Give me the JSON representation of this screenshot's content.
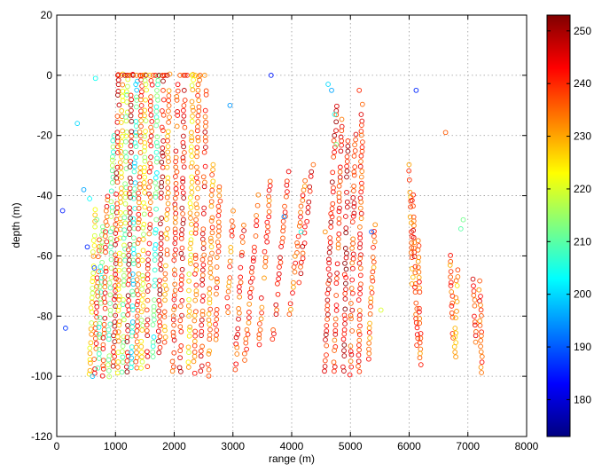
{
  "chart_data": {
    "type": "scatter",
    "title": "",
    "xlabel": "range (m)",
    "ylabel": "depth (m)",
    "xlim": [
      0,
      8000
    ],
    "ylim": [
      -120,
      20
    ],
    "xticks": [
      0,
      1000,
      2000,
      3000,
      4000,
      5000,
      6000,
      7000,
      8000
    ],
    "yticks": [
      20,
      0,
      -20,
      -40,
      -60,
      -80,
      -100,
      -120
    ],
    "grid": true,
    "marker": "open-circle",
    "colormap": "jet",
    "colorbar": {
      "range": [
        173,
        253
      ],
      "ticks": [
        180,
        190,
        200,
        210,
        220,
        230,
        240,
        250
      ],
      "position": "right"
    },
    "tracks": [
      {
        "x0": 650,
        "x1": 560,
        "ytop": -45,
        "ybot": -100,
        "c": 225
      },
      {
        "x0": 720,
        "x1": 640,
        "ytop": -55,
        "ybot": -100,
        "c": 238
      },
      {
        "x0": 780,
        "x1": 700,
        "ytop": -50,
        "ybot": -100,
        "c": 210
      },
      {
        "x0": 860,
        "x1": 780,
        "ytop": -40,
        "ybot": -100,
        "c": 240
      },
      {
        "x0": 960,
        "x1": 880,
        "ytop": -20,
        "ybot": -100,
        "c": 212
      },
      {
        "x0": 1060,
        "x1": 970,
        "ytop": 0,
        "ybot": -100,
        "c": 244
      },
      {
        "x0": 1120,
        "x1": 1040,
        "ytop": 0,
        "ybot": -100,
        "c": 228
      },
      {
        "x0": 1200,
        "x1": 1120,
        "ytop": 0,
        "ybot": -100,
        "c": 215
      },
      {
        "x0": 1280,
        "x1": 1200,
        "ytop": 0,
        "ybot": -100,
        "c": 246
      },
      {
        "x0": 1360,
        "x1": 1270,
        "ytop": 0,
        "ybot": -100,
        "c": 205
      },
      {
        "x0": 1440,
        "x1": 1350,
        "ytop": 0,
        "ybot": -100,
        "c": 237
      },
      {
        "x0": 1520,
        "x1": 1440,
        "ytop": 0,
        "ybot": -100,
        "c": 222
      },
      {
        "x0": 1620,
        "x1": 1530,
        "ytop": 0,
        "ybot": -100,
        "c": 240
      },
      {
        "x0": 1720,
        "x1": 1640,
        "ytop": 0,
        "ybot": -95,
        "c": 208
      },
      {
        "x0": 1820,
        "x1": 1740,
        "ytop": 0,
        "ybot": -95,
        "c": 245
      },
      {
        "x0": 1920,
        "x1": 1840,
        "ytop": 0,
        "ybot": -90,
        "c": 232
      },
      {
        "x0": 2060,
        "x1": 1980,
        "ytop": 0,
        "ybot": -100,
        "c": 239
      },
      {
        "x0": 2180,
        "x1": 2100,
        "ytop": 0,
        "ybot": -100,
        "c": 243
      },
      {
        "x0": 2320,
        "x1": 2240,
        "ytop": 0,
        "ybot": -100,
        "c": 226
      },
      {
        "x0": 2420,
        "x1": 2340,
        "ytop": 0,
        "ybot": -100,
        "c": 236
      },
      {
        "x0": 2540,
        "x1": 2460,
        "ytop": -5,
        "ybot": -100,
        "c": 241
      },
      {
        "x0": 2660,
        "x1": 2580,
        "ytop": -30,
        "ybot": -100,
        "c": 234
      },
      {
        "x0": 2780,
        "x1": 2700,
        "ytop": -35,
        "ybot": -90,
        "c": 238
      },
      {
        "x0": 3000,
        "x1": 2900,
        "ytop": -45,
        "ybot": -80,
        "c": 236
      },
      {
        "x0": 3180,
        "x1": 3040,
        "ytop": -50,
        "ybot": -98,
        "c": 240
      },
      {
        "x0": 3440,
        "x1": 3200,
        "ytop": -40,
        "ybot": -95,
        "c": 239
      },
      {
        "x0": 3640,
        "x1": 3440,
        "ytop": -35,
        "ybot": -90,
        "c": 238
      },
      {
        "x0": 3960,
        "x1": 3680,
        "ytop": -30,
        "ybot": -88,
        "c": 241
      },
      {
        "x0": 4220,
        "x1": 3960,
        "ytop": -35,
        "ybot": -80,
        "c": 237
      },
      {
        "x0": 4360,
        "x1": 4120,
        "ytop": -30,
        "ybot": -70,
        "c": 242
      },
      {
        "x0": 4760,
        "x1": 4560,
        "ytop": -10,
        "ybot": -100,
        "c": 244
      },
      {
        "x0": 4860,
        "x1": 4720,
        "ytop": -15,
        "ybot": -100,
        "c": 240
      },
      {
        "x0": 4960,
        "x1": 4880,
        "ytop": -20,
        "ybot": -100,
        "c": 246
      },
      {
        "x0": 5080,
        "x1": 5000,
        "ytop": -20,
        "ybot": -100,
        "c": 240
      },
      {
        "x0": 5200,
        "x1": 5140,
        "ytop": -10,
        "ybot": -100,
        "c": 239
      },
      {
        "x0": 5420,
        "x1": 5300,
        "ytop": -50,
        "ybot": -95,
        "c": 235
      },
      {
        "x0": 6000,
        "x1": 6060,
        "ytop": -30,
        "ybot": -70,
        "c": 234
      },
      {
        "x0": 6060,
        "x1": 6140,
        "ytop": -40,
        "ybot": -90,
        "c": 240
      },
      {
        "x0": 6160,
        "x1": 6200,
        "ytop": -55,
        "ybot": -100,
        "c": 237
      },
      {
        "x0": 6700,
        "x1": 6760,
        "ytop": -60,
        "ybot": -90,
        "c": 236
      },
      {
        "x0": 6820,
        "x1": 6780,
        "ytop": -65,
        "ybot": -95,
        "c": 232
      },
      {
        "x0": 7100,
        "x1": 7140,
        "ytop": -68,
        "ybot": -90,
        "c": 240
      },
      {
        "x0": 7200,
        "x1": 7240,
        "ytop": -68,
        "ybot": -100,
        "c": 238
      }
    ],
    "surface_points": {
      "x": [
        1040,
        1100,
        1160,
        1200,
        1240,
        1300,
        1360,
        1420,
        1460,
        1520,
        1580,
        1640,
        1680,
        1740,
        1800,
        1840,
        1880,
        2100,
        2160,
        2220,
        2300,
        2360,
        2440,
        2520
      ],
      "y": [
        0,
        0,
        0,
        0,
        0,
        0,
        0,
        0,
        0,
        0,
        0,
        0,
        0,
        0,
        0,
        0,
        0,
        0,
        0,
        0,
        0,
        0,
        0,
        0
      ],
      "c": [
        246,
        238,
        250,
        244,
        238,
        248,
        232,
        240,
        236,
        250,
        226,
        236,
        242,
        252,
        238,
        240,
        248,
        236,
        238,
        240,
        222,
        228,
        236,
        232
      ]
    },
    "scattered_points": {
      "x": [
        100,
        150,
        350,
        460,
        520,
        560,
        610,
        640,
        660,
        680,
        2950,
        3650,
        3870,
        4160,
        4570,
        4620,
        4680,
        4730,
        4760,
        5150,
        5360,
        5520,
        6120,
        6620,
        6880,
        6920
      ],
      "y": [
        -45,
        -84,
        -16,
        -38,
        -57,
        -41,
        -100,
        -64,
        -1,
        -48,
        -10,
        0,
        -47,
        -52,
        -52,
        -3,
        -5,
        -13,
        -23,
        -5,
        -52,
        -78,
        -5,
        -19,
        -51,
        -48
      ],
      "c": [
        185,
        187,
        200,
        196,
        186,
        203,
        198,
        188,
        204,
        212,
        195,
        185,
        193,
        205,
        232,
        200,
        196,
        205,
        213,
        240,
        190,
        220,
        186,
        236,
        210,
        212
      ]
    }
  }
}
